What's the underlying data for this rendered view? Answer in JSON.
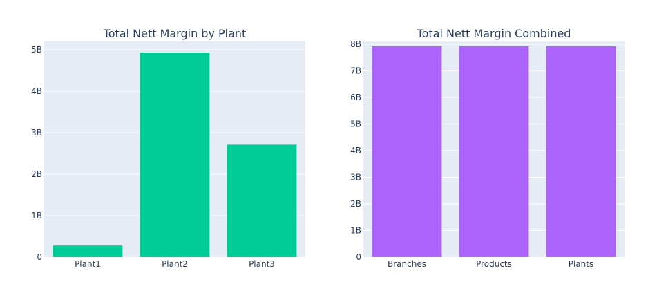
{
  "chart_data": [
    {
      "type": "bar",
      "title": "Total Nett Margin by Plant",
      "xlabel": "",
      "ylabel": "",
      "categories": [
        "Plant1",
        "Plant2",
        "Plant3"
      ],
      "values": [
        280000000,
        4930000000,
        2710000000
      ],
      "ylim": [
        0,
        5200000000
      ],
      "yticks": [
        {
          "value": 0,
          "label": "0"
        },
        {
          "value": 1000000000,
          "label": "1B"
        },
        {
          "value": 2000000000,
          "label": "2B"
        },
        {
          "value": 3000000000,
          "label": "3B"
        },
        {
          "value": 4000000000,
          "label": "4B"
        },
        {
          "value": 5000000000,
          "label": "5B"
        }
      ],
      "color": "#00cc96",
      "grid": true
    },
    {
      "type": "bar",
      "title": "Total Nett Margin Combined",
      "xlabel": "",
      "ylabel": "",
      "categories": [
        "Branches",
        "Products",
        "Plants"
      ],
      "values": [
        7920000000,
        7920000000,
        7920000000
      ],
      "ylim": [
        0,
        8100000000
      ],
      "yticks": [
        {
          "value": 0,
          "label": "0"
        },
        {
          "value": 1000000000,
          "label": "1B"
        },
        {
          "value": 2000000000,
          "label": "2B"
        },
        {
          "value": 3000000000,
          "label": "3B"
        },
        {
          "value": 4000000000,
          "label": "4B"
        },
        {
          "value": 5000000000,
          "label": "5B"
        },
        {
          "value": 6000000000,
          "label": "6B"
        },
        {
          "value": 7000000000,
          "label": "7B"
        },
        {
          "value": 8000000000,
          "label": "8B"
        }
      ],
      "color": "#ab63fa",
      "grid": true
    }
  ]
}
